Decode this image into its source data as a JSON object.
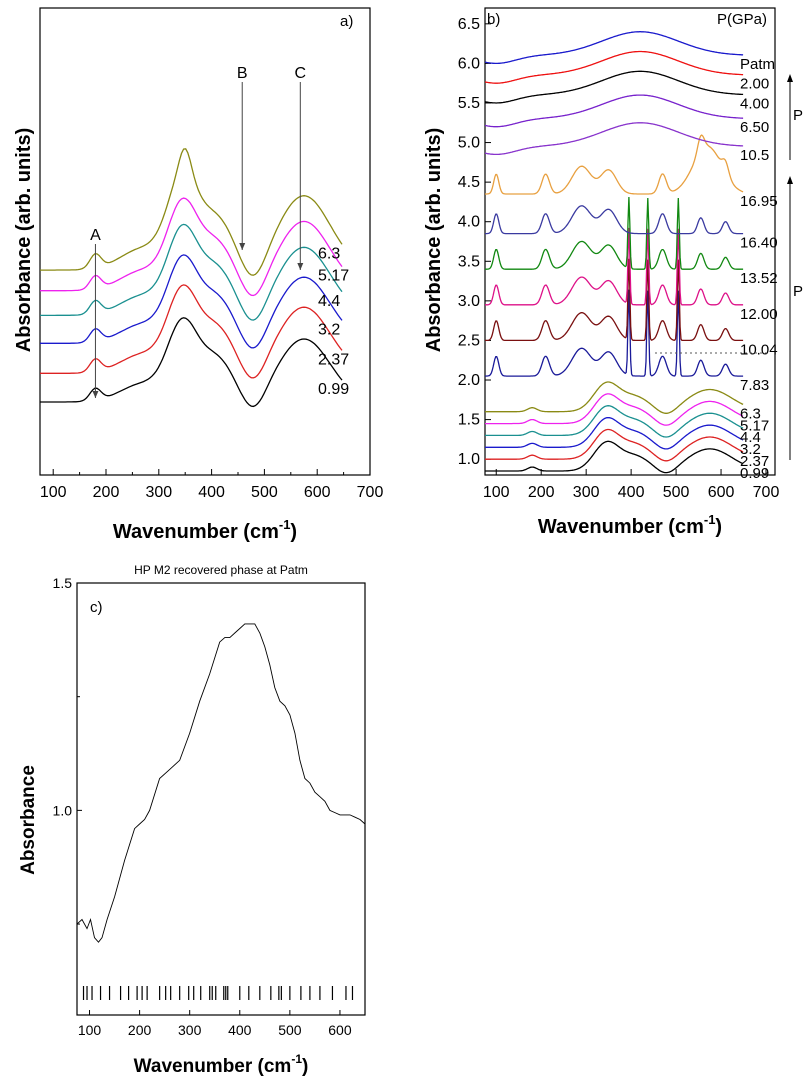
{
  "chart_data": [
    {
      "type": "line",
      "panel_label": "a)",
      "xlabel": "Wavenumber (cm",
      "xlabel_sup": "-1",
      "xlabel_tail": ")",
      "ylabel": "Absorbance (arb. units)",
      "xlim": [
        75,
        700
      ],
      "xticks": [
        "100",
        "200",
        "300",
        "400",
        "500",
        "600",
        "700"
      ],
      "annotations": [
        {
          "text": "A",
          "x": 180
        },
        {
          "text": "B",
          "x": 458
        },
        {
          "text": "C",
          "x": 568
        }
      ],
      "series": [
        {
          "name": "0.99",
          "color": "#000000",
          "offset": 0.0,
          "scale": 1.0
        },
        {
          "name": "2.37",
          "color": "#dd2222",
          "offset": 0.18,
          "scale": 1.05
        },
        {
          "name": "3.2",
          "color": "#1a1acc",
          "offset": 0.38,
          "scale": 1.05
        },
        {
          "name": "4.4",
          "color": "#1a9090",
          "offset": 0.56,
          "scale": 1.08
        },
        {
          "name": "5.17",
          "color": "#ee22ee",
          "offset": 0.72,
          "scale": 1.1
        },
        {
          "name": "6.3",
          "color": "#8a8a14",
          "offset": 0.84,
          "scale": 1.18
        }
      ]
    },
    {
      "type": "line",
      "panel_label": "b)",
      "legend_title": "P(GPa)",
      "xlabel": "Wavenumber (cm",
      "xlabel_sup": "-1",
      "xlabel_tail": ")",
      "ylabel": "Absorbance (arb. units)",
      "xlim": [
        75,
        720
      ],
      "ylim": [
        0.8,
        6.7
      ],
      "xticks": [
        "100",
        "200",
        "300",
        "400",
        "500",
        "600",
        "700"
      ],
      "yticks": [
        "1.0",
        "1.5",
        "2.0",
        "2.5",
        "3.0",
        "3.5",
        "4.0",
        "4.5",
        "5.0",
        "5.5",
        "6.0",
        "6.5"
      ],
      "arrow_labels": [
        "P",
        "P"
      ],
      "series": [
        {
          "name": "0.99",
          "color": "#000000",
          "base": 1.0,
          "kind": "low"
        },
        {
          "name": "2.37",
          "color": "#dd2222",
          "base": 1.15,
          "kind": "low"
        },
        {
          "name": "3.2",
          "color": "#1a1acc",
          "base": 1.3,
          "kind": "low"
        },
        {
          "name": "4.4",
          "color": "#1a9090",
          "base": 1.45,
          "kind": "low"
        },
        {
          "name": "5.17",
          "color": "#ee22ee",
          "base": 1.6,
          "kind": "low"
        },
        {
          "name": "6.3",
          "color": "#8a8a14",
          "base": 1.75,
          "kind": "low"
        },
        {
          "name": "7.83",
          "color": "#1a1a99",
          "base": 2.15,
          "kind": "high"
        },
        {
          "name": "10.04",
          "color": "#7a1010",
          "base": 2.6,
          "kind": "high"
        },
        {
          "name": "12.00",
          "color": "#dd1188",
          "base": 3.05,
          "kind": "high"
        },
        {
          "name": "13.52",
          "color": "#118811",
          "base": 3.5,
          "kind": "high"
        },
        {
          "name": "16.40",
          "color": "#3a3aa0",
          "base": 3.95,
          "kind": "high"
        },
        {
          "name": "16.95",
          "color": "#e8a040",
          "base": 4.45,
          "kind": "high"
        },
        {
          "name": "10.5",
          "color": "#8833cc",
          "base": 4.95,
          "kind": "broad"
        },
        {
          "name": "6.50",
          "color": "#7722cc",
          "base": 5.3,
          "kind": "broad"
        },
        {
          "name": "4.00",
          "color": "#000000",
          "base": 5.6,
          "kind": "broad"
        },
        {
          "name": "2.00",
          "color": "#ee1111",
          "base": 5.85,
          "kind": "broad"
        },
        {
          "name": "Patm",
          "color": "#1a1acc",
          "base": 6.1,
          "kind": "broad"
        }
      ]
    },
    {
      "type": "line",
      "panel_label": "c)",
      "title": "HP M2 recovered phase at Patm",
      "xlabel": "Wavenumber (cm",
      "xlabel_sup": "-1",
      "xlabel_tail": ")",
      "ylabel": "Absorbance",
      "xlim": [
        75,
        650
      ],
      "ylim": [
        0.55,
        1.5
      ],
      "xticks": [
        "100",
        "200",
        "300",
        "400",
        "500",
        "600"
      ],
      "yticks": [
        "1.0",
        "1.5"
      ],
      "x": [
        75,
        85,
        95,
        102,
        110,
        118,
        125,
        135,
        150,
        170,
        190,
        200,
        210,
        220,
        240,
        260,
        280,
        300,
        320,
        340,
        360,
        370,
        380,
        390,
        400,
        410,
        420,
        430,
        440,
        450,
        460,
        470,
        480,
        490,
        500,
        510,
        520,
        530,
        540,
        550,
        560,
        570,
        580,
        590,
        600,
        610,
        620,
        630,
        640,
        650
      ],
      "y": [
        0.75,
        0.76,
        0.74,
        0.76,
        0.72,
        0.71,
        0.72,
        0.76,
        0.81,
        0.89,
        0.96,
        0.97,
        0.98,
        1.0,
        1.07,
        1.09,
        1.11,
        1.17,
        1.24,
        1.3,
        1.37,
        1.38,
        1.38,
        1.39,
        1.4,
        1.41,
        1.41,
        1.41,
        1.39,
        1.36,
        1.32,
        1.27,
        1.24,
        1.23,
        1.21,
        1.17,
        1.11,
        1.07,
        1.06,
        1.04,
        1.03,
        1.02,
        1.0,
        0.995,
        0.99,
        0.99,
        0.99,
        0.985,
        0.98,
        0.97
      ],
      "stick_positions": [
        88,
        95,
        105,
        122,
        140,
        162,
        178,
        195,
        205,
        215,
        240,
        252,
        262,
        280,
        298,
        308,
        322,
        340,
        345,
        352,
        368,
        372,
        376,
        400,
        418,
        440,
        462,
        478,
        483,
        500,
        522,
        540,
        560,
        585,
        612,
        625
      ]
    }
  ]
}
